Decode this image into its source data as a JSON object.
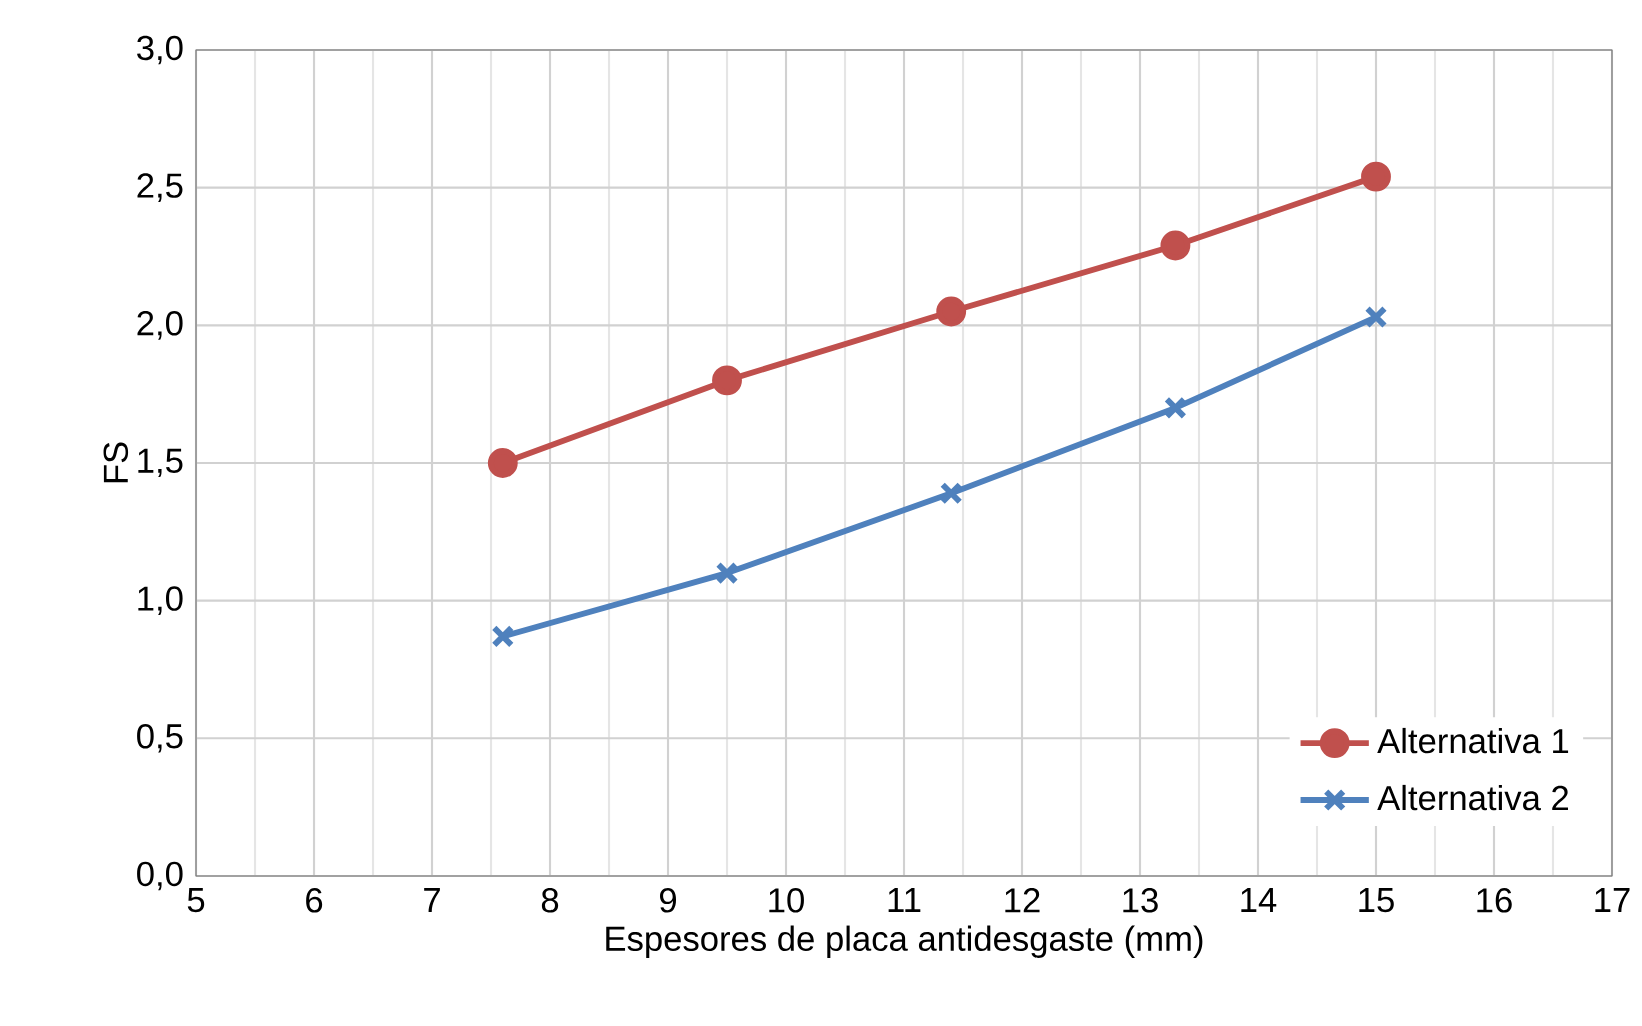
{
  "chart_data": {
    "type": "line",
    "xlabel": "Espesores de placa antidesgaste (mm)",
    "ylabel": "FS",
    "x": [
      7.6,
      9.5,
      11.4,
      13.3,
      15
    ],
    "series": [
      {
        "name": "Alternativa 1",
        "color": "#c0504d",
        "marker": "circle",
        "values": [
          1.5,
          1.8,
          2.05,
          2.29,
          2.54
        ]
      },
      {
        "name": "Alternativa 2",
        "color": "#4f81bd",
        "marker": "cross",
        "values": [
          0.87,
          1.1,
          1.39,
          1.7,
          2.03
        ]
      }
    ],
    "xlim": [
      5,
      17
    ],
    "xticks": [
      5,
      6,
      7,
      8,
      9,
      10,
      11,
      12,
      13,
      14,
      15,
      16,
      17
    ],
    "ylim": [
      0,
      3
    ],
    "yticks": [
      {
        "value": 0,
        "label": "0,0"
      },
      {
        "value": 0.5,
        "label": "0,5"
      },
      {
        "value": 1,
        "label": "1,0"
      },
      {
        "value": 1.5,
        "label": "1,5"
      },
      {
        "value": 2,
        "label": "2,0"
      },
      {
        "value": 2.5,
        "label": "2,5"
      },
      {
        "value": 3,
        "label": "3,0"
      }
    ],
    "grid": true,
    "legend": "bottom right",
    "line_style": "solid"
  }
}
